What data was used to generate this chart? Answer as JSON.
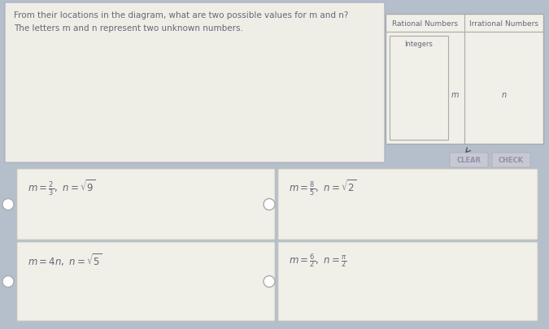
{
  "bg_color": "#b5bfcc",
  "top_panel_bg": "#eeede6",
  "top_panel_border": "#aaaabb",
  "title_text": "From their locations in the diagram, what are two possible values for m and n?",
  "subtitle_text": "The letters m and n represent two unknown numbers.",
  "diagram_bg": "#f0efe8",
  "diagram_border": "#aaaaaa",
  "diagram_title_rational": "Rational Numbers",
  "diagram_title_irrational": "Irrational Numbers",
  "diagram_label_integers": "Integers",
  "diagram_label_m": "m",
  "diagram_label_n": "n",
  "clear_btn_text": "CLEAR",
  "check_btn_text": "CHECK",
  "btn_bg": "#c8c8d5",
  "btn_text_color": "#9090aa",
  "option_bg": "#f0efe8",
  "option_border": "#ccccbb",
  "options": [
    {
      "label": "$m = \\frac{2}{3},\\ n = \\sqrt{9}$",
      "row": 0,
      "col": 0
    },
    {
      "label": "$m = \\frac{8}{5},\\ n = \\sqrt{2}$",
      "row": 0,
      "col": 1
    },
    {
      "label": "$m = 4n,\\ n = \\sqrt{5}$",
      "row": 1,
      "col": 0
    },
    {
      "label": "$m = \\frac{6}{2},\\ n = \\frac{\\pi}{2}$",
      "row": 1,
      "col": 1
    }
  ],
  "radio_color": "#aaaaaa",
  "text_color": "#666677",
  "title_fontsize": 7.5,
  "subtitle_fontsize": 7.5,
  "option_fontsize": 8.5,
  "diag_fontsize": 6.5,
  "btn_fontsize": 6.0
}
